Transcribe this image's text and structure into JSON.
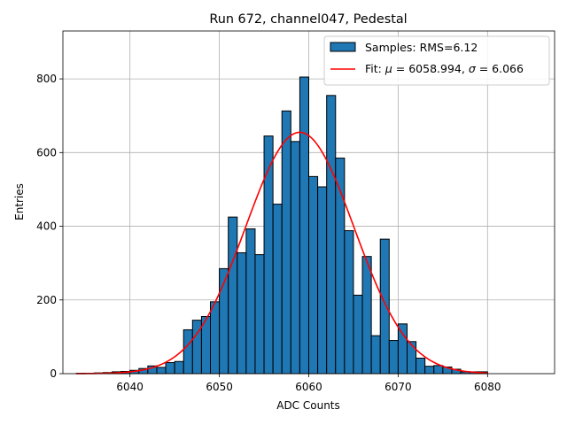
{
  "chart_data": {
    "type": "bar",
    "title": "Run 672, channel047, Pedestal",
    "xlabel": "ADC Counts",
    "ylabel": "Entries",
    "xlim": [
      6032.5,
      6087.5
    ],
    "ylim": [
      0,
      930
    ],
    "grid": true,
    "legend_position": "top-right",
    "x_ticks": [
      6040,
      6050,
      6060,
      6070,
      6080
    ],
    "y_ticks": [
      0,
      200,
      400,
      600,
      800
    ],
    "bin_width": 1,
    "colors": {
      "bars": "#1f77b4",
      "bar_edge": "#000000",
      "fit": "#ff0000",
      "grid": "#b0b0b0"
    },
    "series": [
      {
        "name": "Samples: RMS=6.12",
        "kind": "histogram",
        "bins_left": [
          6034,
          6035,
          6036,
          6037,
          6038,
          6039,
          6040,
          6041,
          6042,
          6043,
          6044,
          6045,
          6046,
          6047,
          6048,
          6049,
          6050,
          6051,
          6052,
          6053,
          6054,
          6055,
          6056,
          6057,
          6058,
          6059,
          6060,
          6061,
          6062,
          6063,
          6064,
          6065,
          6066,
          6067,
          6068,
          6069,
          6070,
          6071,
          6072,
          6073,
          6074,
          6075,
          6076,
          6077,
          6078,
          6079
        ],
        "values": [
          1,
          1,
          2,
          3,
          5,
          6,
          9,
          14,
          21,
          17,
          30,
          33,
          119,
          145,
          155,
          195,
          285,
          425,
          328,
          393,
          323,
          645,
          460,
          713,
          630,
          805,
          535,
          507,
          755,
          585,
          388,
          213,
          318,
          103,
          365,
          90,
          135,
          87,
          42,
          20,
          22,
          18,
          12,
          5,
          5,
          5
        ]
      },
      {
        "name": "Fit: μ = 6058.994, σ = 6.066",
        "kind": "gaussian",
        "mu": 6058.994,
        "sigma": 6.066,
        "amplitude": 655,
        "x_range": [
          6034,
          6080
        ]
      }
    ]
  },
  "legend": {
    "samples_label": "Samples: RMS=6.12",
    "fit_label_prefix": "Fit: ",
    "fit_mu_symbol": "μ",
    "fit_mu_value": " = 6058.994, ",
    "fit_sigma_symbol": "σ",
    "fit_sigma_value": " = 6.066"
  }
}
